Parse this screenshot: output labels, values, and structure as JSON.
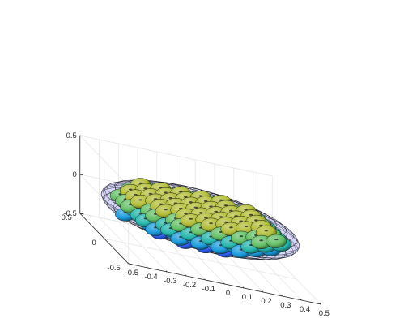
{
  "chart_data": {
    "type": "3d-surface",
    "title": "",
    "xlabel": "",
    "ylabel": "",
    "zlabel": "",
    "grid": true,
    "legend": "none",
    "xlim": [
      -0.5,
      0.5
    ],
    "ylim": [
      -0.5,
      0.5
    ],
    "zlim": [
      -0.5,
      0.5
    ],
    "x_ticks": [
      "-0.5",
      "-0.4",
      "-0.3",
      "-0.2",
      "-0.1",
      "0",
      "0.1",
      "0.2",
      "0.3",
      "0.4",
      "0.5"
    ],
    "y_ticks": [
      "-0.5",
      "0",
      "0.5"
    ],
    "z_ticks": [
      "-0.5",
      "0",
      "0.5"
    ],
    "enclosing_shape": {
      "kind": "oblate ellipsoid (wireframe, translucent)",
      "center": [
        0,
        0,
        0
      ],
      "semi_axes": [
        0.5,
        0.5,
        0.3
      ],
      "face_color": "#8c8cf0",
      "edge_color": "#000000"
    },
    "particles": {
      "kind": "spheres packed inside ellipsoid",
      "colormap": "parula",
      "color_by": "z",
      "approx_count": 120,
      "radius": 0.055
    }
  },
  "colors": {
    "axis": "#262626",
    "grid": "#e6e6e6",
    "parula": [
      "#3e26a8",
      "#2f62f6",
      "#16a5d8",
      "#2bbd9b",
      "#8fc33f",
      "#e1b429",
      "#f9f417"
    ]
  }
}
